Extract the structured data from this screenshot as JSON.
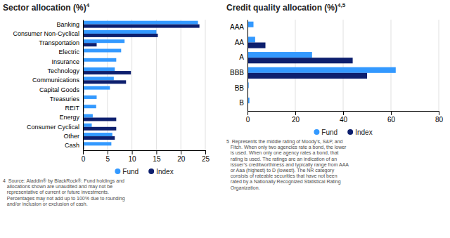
{
  "chart_data": [
    {
      "type": "bar",
      "orientation": "horizontal",
      "title": "Sector allocation (%)4",
      "categories": [
        "Banking",
        "Consumer Non-Cyclical",
        "Transportation",
        "Electric",
        "Insurance",
        "Technology",
        "Communications",
        "Capital Goods",
        "Treasuries",
        "REIT",
        "Energy",
        "Consumer Cyclical",
        "Other",
        "Cash"
      ],
      "series": [
        {
          "name": "Fund",
          "color": "#3399ff",
          "values": [
            23.5,
            15.0,
            8.5,
            7.8,
            6.8,
            6.5,
            6.3,
            5.5,
            2.8,
            2.7,
            2.0,
            1.8,
            6.0,
            5.8
          ]
        },
        {
          "name": "Index",
          "color": "#0d1f6e",
          "values": [
            23.8,
            15.3,
            2.8,
            0.2,
            0.2,
            9.8,
            8.8,
            0.2,
            0.2,
            0.2,
            6.8,
            6.8,
            6.5,
            0.2
          ]
        }
      ],
      "xlim": [
        0,
        25
      ],
      "xticks": [
        0,
        5,
        10,
        15,
        20,
        25
      ],
      "grid": true,
      "legend": "bottom",
      "annotations": [
        "4  Source: Aladdin® by BlackRock®. Fund holdings and\n   allocations shown are unaudited and may not be\n   representative of current or future investments.\n   Percentages may not add up to 100% due to rounding\n   and/or inclusion or exclusion of cash."
      ]
    },
    {
      "type": "bar",
      "orientation": "horizontal",
      "title": "Credit quality allocation (%)4,5",
      "categories": [
        "AAA",
        "AA",
        "A",
        "BBB",
        "BB",
        "B"
      ],
      "series": [
        {
          "name": "Fund",
          "color": "#3399ff",
          "values": [
            2.5,
            3.2,
            27.0,
            62.0,
            0.5,
            0.8
          ]
        },
        {
          "name": "Index",
          "color": "#0d1f6e",
          "values": [
            0.2,
            7.5,
            44.0,
            50.0,
            0.2,
            0.2
          ]
        }
      ],
      "xlim": [
        0,
        80
      ],
      "xticks": [
        0,
        20,
        40,
        60,
        80
      ],
      "grid": true,
      "legend": "bottom",
      "annotations": [
        "5  Represents the middle rating of Moody’s, S&P, and\n   Fitch. When only two agencies rate a bond, the lower\n   is used. When only one agency rates a bond, that\n   rating is used. The ratings are an indication of an\n   issuer’s creditworthiness and typically range from AAA\n   or Aaa (highest) to D (lowest). The NR category\n   consists of rateable securities that have not been\n   rated by a Nationally Recognized Statistical Rating\n   Organization."
      ]
    }
  ]
}
